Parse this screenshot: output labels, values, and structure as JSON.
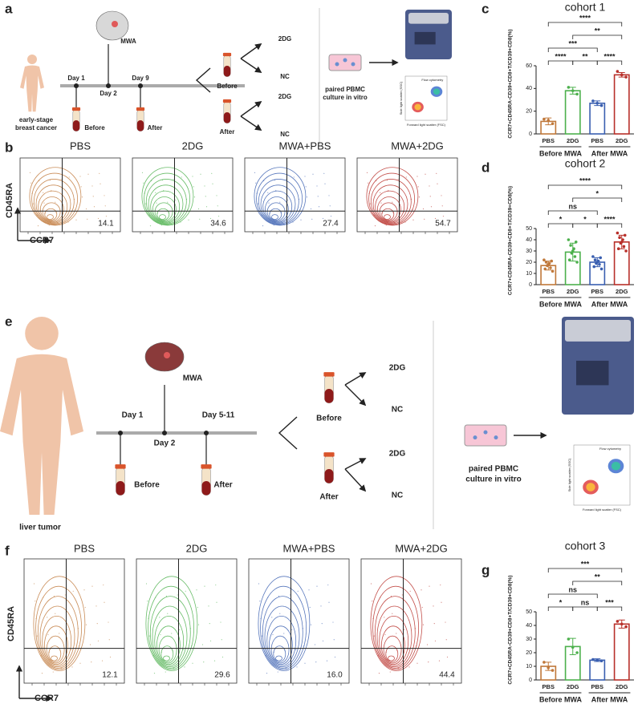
{
  "panel_labels": [
    "a",
    "b",
    "c",
    "d",
    "e",
    "f",
    "g"
  ],
  "schematic_a": {
    "subject": [
      "early-stage",
      "breast cancer"
    ],
    "intervention": "MWA",
    "days": [
      "Day 1",
      "Day 2",
      "Day 9"
    ],
    "samples": [
      "Before",
      "After"
    ],
    "treatments": [
      "2DG",
      "NC"
    ],
    "culture": [
      "paired PBMC",
      "culture in vitro"
    ],
    "flow_title": "Flow cytometry",
    "flow_x": "Forward light scatter (FSC)",
    "flow_y": "Side light scatter (SSC)"
  },
  "flow_b": {
    "columns": [
      "PBS",
      "2DG",
      "MWA+PBS",
      "MWA+2DG"
    ],
    "values": [
      "14.1",
      "34.6",
      "27.4",
      "54.7"
    ],
    "colors": [
      "#c0783a",
      "#4cb04c",
      "#3a5fb0",
      "#b8302a"
    ],
    "ylabel": "CD45RA",
    "xlabel": "CCR7"
  },
  "schematic_e": {
    "subject": [
      "liver tumor"
    ],
    "intervention": "MWA",
    "days": [
      "Day 1",
      "Day 2",
      "Day 5-11"
    ],
    "samples": [
      "Before",
      "After"
    ],
    "treatments": [
      "2DG",
      "NC"
    ],
    "culture": [
      "paired PBMC",
      "culture in vitro"
    ],
    "flow_title": "Flow cytometry",
    "flow_x": "Forward light scatter (FSC)",
    "flow_y": "Side light scatter (SSC)"
  },
  "flow_f": {
    "columns": [
      "PBS",
      "2DG",
      "MWA+PBS",
      "MWA+2DG"
    ],
    "values": [
      "12.1",
      "29.6",
      "16.0",
      "44.4"
    ],
    "colors": [
      "#c0783a",
      "#4cb04c",
      "#3a5fb0",
      "#b8302a"
    ],
    "ylabel": "CD45RA",
    "xlabel": "CCR7"
  },
  "chart_data": [
    {
      "type": "bar",
      "title": "cohort 1",
      "ylabel": "CCR7+CD45RA-CD39+CD8+T/CD39+CD8(%)",
      "categories": [
        "PBS",
        "2DG",
        "PBS",
        "2DG"
      ],
      "colors": [
        "#c0783a",
        "#4cb04c",
        "#3a5fb0",
        "#b8302a"
      ],
      "values": [
        11,
        38,
        27,
        52
      ],
      "errors": [
        3,
        3,
        2,
        2
      ],
      "points": [
        [
          9,
          12,
          13
        ],
        [
          35,
          38,
          41
        ],
        [
          25,
          27,
          29
        ],
        [
          50,
          52,
          55
        ]
      ],
      "groups": [
        {
          "label": "Before MWA",
          "span": [
            0,
            1
          ]
        },
        {
          "label": "After MWA",
          "span": [
            2,
            3
          ]
        }
      ],
      "brackets": [
        {
          "span": [
            0,
            1
          ],
          "label": "****"
        },
        {
          "span": [
            1,
            2
          ],
          "label": "**"
        },
        {
          "span": [
            2,
            3
          ],
          "label": "****"
        },
        {
          "span": [
            0,
            2
          ],
          "label": "***"
        },
        {
          "span": [
            1,
            3
          ],
          "label": "**"
        },
        {
          "span": [
            0,
            3
          ],
          "label": "****"
        }
      ],
      "ylim": [
        0,
        60
      ],
      "yticks": [
        0,
        20,
        40,
        60
      ]
    },
    {
      "type": "bar",
      "title": "cohort 2",
      "ylabel": "CCR7+CD45RA-CD39+CD8+T/CD39+CD8(%)",
      "categories": [
        "PBS",
        "2DG",
        "PBS",
        "2DG"
      ],
      "colors": [
        "#c0783a",
        "#4cb04c",
        "#3a5fb0",
        "#b8302a"
      ],
      "values": [
        17,
        29,
        20,
        38
      ],
      "errors": [
        4,
        8,
        4,
        6
      ],
      "points": [
        [
          12,
          14,
          15,
          17,
          18,
          19,
          20,
          21,
          22
        ],
        [
          20,
          22,
          25,
          28,
          30,
          32,
          35,
          38,
          40
        ],
        [
          14,
          16,
          18,
          19,
          20,
          21,
          22,
          24,
          25
        ],
        [
          30,
          32,
          34,
          37,
          38,
          40,
          42,
          44,
          46
        ]
      ],
      "groups": [
        {
          "label": "Before MWA",
          "span": [
            0,
            1
          ]
        },
        {
          "label": "After MWA",
          "span": [
            2,
            3
          ]
        }
      ],
      "brackets": [
        {
          "span": [
            0,
            1
          ],
          "label": "*"
        },
        {
          "span": [
            1,
            2
          ],
          "label": "*"
        },
        {
          "span": [
            2,
            3
          ],
          "label": "****"
        },
        {
          "span": [
            0,
            2
          ],
          "label": "ns"
        },
        {
          "span": [
            1,
            3
          ],
          "label": "*"
        },
        {
          "span": [
            0,
            3
          ],
          "label": "****"
        }
      ],
      "ylim": [
        0,
        50
      ],
      "yticks": [
        0,
        10,
        20,
        30,
        40,
        50
      ]
    },
    {
      "type": "bar",
      "title": "cohort 3",
      "ylabel": "CCR7+CD45RA-CD39+CD8+T/CD39+CD8(%)",
      "categories": [
        "PBS",
        "2DG",
        "PBS",
        "2DG"
      ],
      "colors": [
        "#c0783a",
        "#4cb04c",
        "#3a5fb0",
        "#b8302a"
      ],
      "values": [
        10,
        24.5,
        14.5,
        41
      ],
      "errors": [
        3,
        6,
        1,
        3
      ],
      "points": [
        [
          7,
          9,
          13
        ],
        [
          20,
          24,
          30
        ],
        [
          14,
          14.5,
          15
        ],
        [
          39,
          41,
          43
        ]
      ],
      "groups": [
        {
          "label": "Before MWA",
          "span": [
            0,
            1
          ]
        },
        {
          "label": "After MWA",
          "span": [
            2,
            3
          ]
        }
      ],
      "brackets": [
        {
          "span": [
            0,
            1
          ],
          "label": "*"
        },
        {
          "span": [
            1,
            2
          ],
          "label": "ns"
        },
        {
          "span": [
            2,
            3
          ],
          "label": "***"
        },
        {
          "span": [
            0,
            2
          ],
          "label": "ns"
        },
        {
          "span": [
            1,
            3
          ],
          "label": "**"
        },
        {
          "span": [
            0,
            3
          ],
          "label": "***"
        }
      ],
      "ylim": [
        0,
        50
      ],
      "yticks": [
        0,
        10,
        20,
        30,
        40,
        50
      ]
    }
  ]
}
